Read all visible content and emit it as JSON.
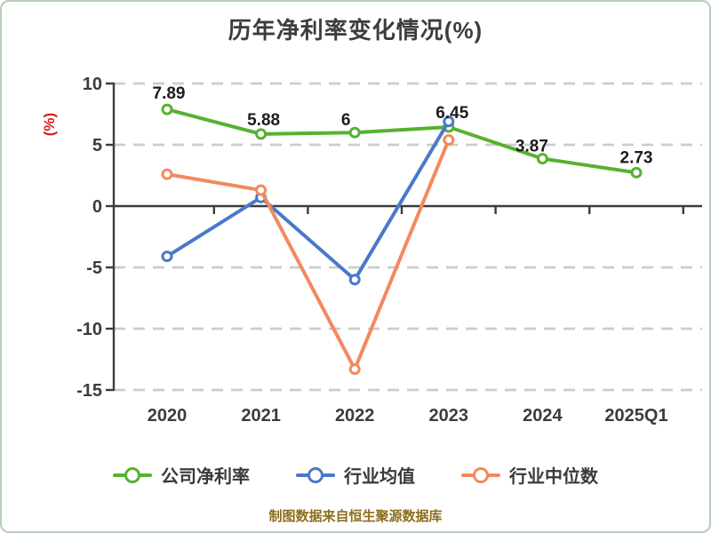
{
  "page": {
    "background_color": "#ffffff",
    "border_color": "#b7cdb7"
  },
  "title": {
    "text": "历年净利率变化情况(%)",
    "color": "#3d3d3d"
  },
  "y_axis_title": {
    "text": "(%)",
    "color": "#e01a1a"
  },
  "footer": {
    "text": "制图数据来自恒生聚源数据库",
    "color": "#8d6e1d"
  },
  "axis": {
    "line_color": "#3c3c3c",
    "grid_color": "#cccccc",
    "tick_label_color": "#3c3c3c"
  },
  "legend": [
    {
      "label": "公司净利率",
      "color": "#55b230"
    },
    {
      "label": "行业均值",
      "color": "#4a79c9"
    },
    {
      "label": "行业中位数",
      "color": "#f28a5e"
    }
  ],
  "chart_data": {
    "type": "line",
    "title": "历年净利率变化情况(%)",
    "ylabel": "(%)",
    "categories": [
      "2020",
      "2021",
      "2022",
      "2023",
      "2024",
      "2025Q1"
    ],
    "series": [
      {
        "name": "公司净利率",
        "color": "#55b230",
        "values": [
          7.89,
          5.88,
          6,
          6.45,
          3.87,
          2.73
        ],
        "labels": [
          "7.89",
          "5.88",
          "6",
          "6.45",
          "3.87",
          "2.73"
        ]
      },
      {
        "name": "行业均值",
        "color": "#4a79c9",
        "values": [
          -4.1,
          0.7,
          -6,
          6.9,
          null,
          null
        ],
        "labels": []
      },
      {
        "name": "行业中位数",
        "color": "#f28a5e",
        "values": [
          2.6,
          1.3,
          -13.3,
          5.4,
          null,
          null
        ],
        "labels": []
      }
    ],
    "ylim": [
      -15,
      10
    ],
    "yticks": [
      10,
      5,
      0,
      -5,
      -10,
      -15
    ],
    "grid": "horizontal-dashed",
    "zero_line": "solid",
    "legend_position": "bottom",
    "marker": "white-filled-circle"
  }
}
